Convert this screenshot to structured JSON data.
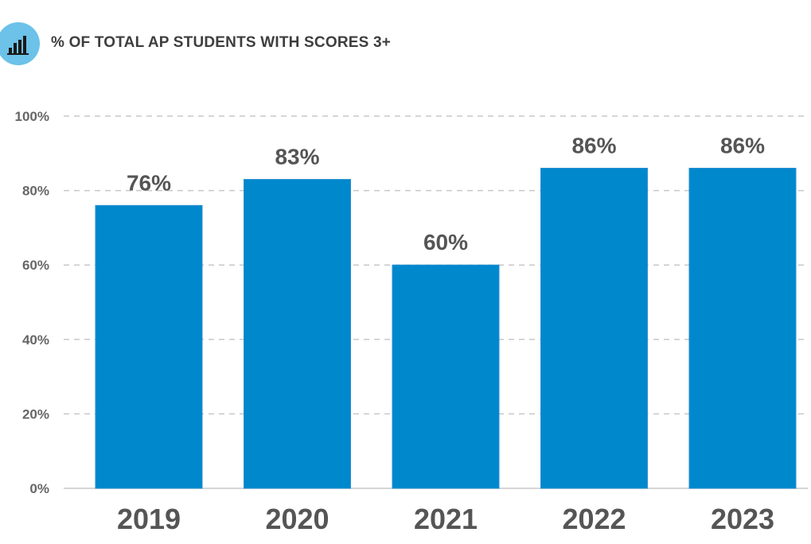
{
  "header": {
    "title": "% OF TOTAL AP STUDENTS WITH SCORES 3+",
    "icon": "bar-chart-icon",
    "icon_bg_color": "#6cc2e8"
  },
  "chart_data": {
    "type": "bar",
    "title": "% OF TOTAL AP STUDENTS WITH SCORES 3+",
    "categories": [
      "2019",
      "2020",
      "2021",
      "2022",
      "2023"
    ],
    "values": [
      76,
      83,
      60,
      86,
      86
    ],
    "data_labels": [
      "76%",
      "83%",
      "60%",
      "86%",
      "86%"
    ],
    "ylim": [
      0,
      100
    ],
    "yticks": [
      0,
      20,
      40,
      60,
      80,
      100
    ],
    "ytick_labels": [
      "0%",
      "20%",
      "40%",
      "60%",
      "80%",
      "100%"
    ],
    "xlabel": "",
    "ylabel": "",
    "grid": true,
    "legend": "none",
    "bar_color": "#0088cc",
    "grid_color": "#c8c8c8"
  }
}
